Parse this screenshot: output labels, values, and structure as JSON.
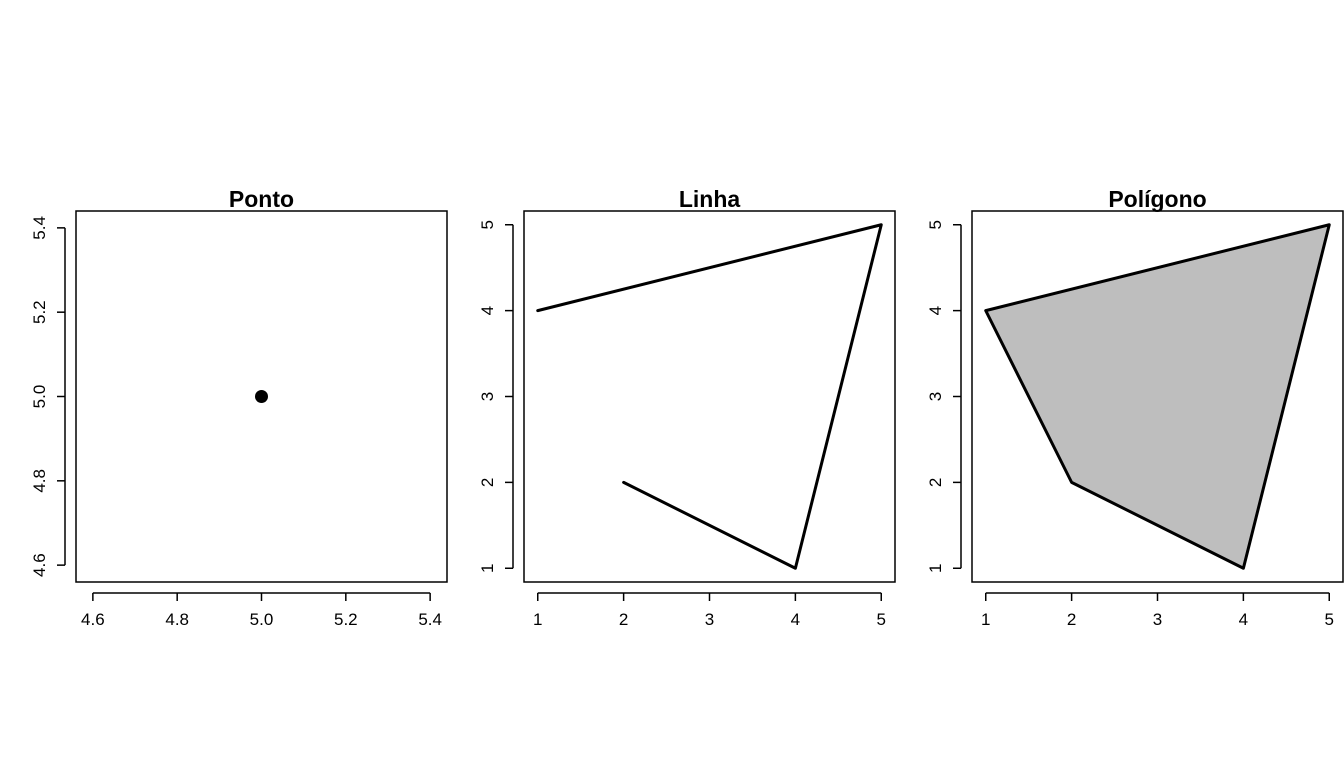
{
  "chart_data": [
    {
      "type": "scatter",
      "title": "Ponto",
      "xlabel": "",
      "ylabel": "",
      "xlim": [
        4.56,
        5.44
      ],
      "ylim": [
        4.56,
        5.44
      ],
      "xticks": [
        4.6,
        4.8,
        5.0,
        5.2,
        5.4
      ],
      "yticks": [
        4.6,
        4.8,
        5.0,
        5.2,
        5.4
      ],
      "xtick_labels": [
        "4.6",
        "4.8",
        "5.0",
        "5.2",
        "5.4"
      ],
      "ytick_labels": [
        "4.6",
        "4.8",
        "5.0",
        "5.2",
        "5.4"
      ],
      "grid": false,
      "series": [
        {
          "x": [
            5
          ],
          "y": [
            5
          ],
          "color": "#000000"
        }
      ]
    },
    {
      "type": "line",
      "title": "Linha",
      "xlabel": "",
      "ylabel": "",
      "xlim": [
        0.84,
        5.16
      ],
      "ylim": [
        0.84,
        5.16
      ],
      "xticks": [
        1,
        2,
        3,
        4,
        5
      ],
      "yticks": [
        1,
        2,
        3,
        4,
        5
      ],
      "xtick_labels": [
        "1",
        "2",
        "3",
        "4",
        "5"
      ],
      "ytick_labels": [
        "1",
        "2",
        "3",
        "4",
        "5"
      ],
      "grid": false,
      "series": [
        {
          "x": [
            1,
            5,
            4,
            2
          ],
          "y": [
            4,
            5,
            1,
            2
          ],
          "color": "#000000"
        }
      ]
    },
    {
      "type": "area",
      "title": "Polígono",
      "xlabel": "",
      "ylabel": "",
      "xlim": [
        0.84,
        5.16
      ],
      "ylim": [
        0.84,
        5.16
      ],
      "xticks": [
        1,
        2,
        3,
        4,
        5
      ],
      "yticks": [
        1,
        2,
        3,
        4,
        5
      ],
      "xtick_labels": [
        "1",
        "2",
        "3",
        "4",
        "5"
      ],
      "ytick_labels": [
        "1",
        "2",
        "3",
        "4",
        "5"
      ],
      "grid": false,
      "series": [
        {
          "x": [
            1,
            5,
            4,
            2
          ],
          "y": [
            4,
            5,
            1,
            2
          ],
          "color": "#000000",
          "fill": "#bebebe"
        }
      ]
    }
  ]
}
